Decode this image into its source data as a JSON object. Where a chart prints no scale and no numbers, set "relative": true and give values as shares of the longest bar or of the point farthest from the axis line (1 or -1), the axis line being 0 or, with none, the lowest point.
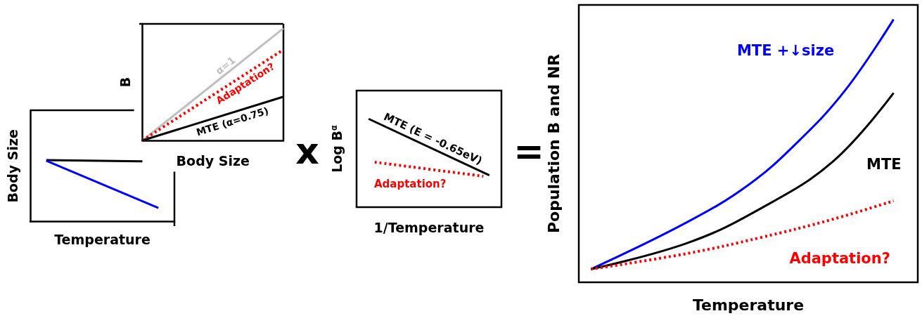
{
  "chart_data": [
    {
      "type": "line",
      "xlabel": "Temperature",
      "ylabel": "Body Size",
      "relative": true,
      "grid": false,
      "legend": false,
      "categories": [
        null,
        null,
        null,
        null,
        null,
        null,
        null,
        null,
        null,
        null
      ],
      "series": [
        {
          "color": "#000000",
          "values": [
            null,
            1,
            null,
            null,
            null,
            null,
            null,
            0.98,
            null,
            null
          ]
        },
        {
          "color": "#0000ff",
          "values": [
            null,
            0.99,
            null,
            null,
            null,
            null,
            null,
            null,
            0.22,
            null
          ]
        }
      ]
    },
    {
      "type": "line",
      "xlabel": "Body Size",
      "ylabel": "B",
      "relative": true,
      "grid": false,
      "legend": false,
      "categories": [
        null,
        null
      ],
      "series": [
        {
          "name": "α=1",
          "color": "#bfbfbf",
          "values": [
            0,
            1
          ]
        },
        {
          "name": "Adaptation?",
          "color": "#ff0000",
          "line_style": "dotted",
          "values": [
            0,
            0.81
          ]
        },
        {
          "name": "MTE (α=0.75)",
          "color": "#000000",
          "values": [
            0,
            0.39
          ]
        }
      ]
    },
    {
      "type": "line",
      "xlabel": "1/Temperature",
      "ylabel": "Log B$^{α}$",
      "relative": true,
      "grid": false,
      "legend": false,
      "annotations": [
        "x"
      ],
      "categories": [
        null,
        null,
        null,
        null,
        null,
        null,
        null,
        null,
        null,
        null,
        null,
        null,
        null,
        null,
        null,
        null,
        null,
        null,
        null,
        null,
        null,
        null,
        null,
        null,
        null
      ],
      "series": [
        {
          "name": "MTE (E = -0.65eV)",
          "color": "#000000",
          "values": [
            null,
            null,
            1,
            null,
            null,
            null,
            null,
            null,
            null,
            null,
            null,
            null,
            null,
            null,
            null,
            null,
            null,
            null,
            null,
            null,
            null,
            null,
            0.36,
            null,
            null
          ]
        },
        {
          "name": "Adaptation?",
          "color": "#ff0000",
          "line_style": "dotted",
          "values": [
            null,
            null,
            null,
            0.51,
            null,
            null,
            null,
            null,
            null,
            null,
            null,
            null,
            null,
            null,
            null,
            null,
            null,
            null,
            null,
            null,
            null,
            0.35,
            null,
            null,
            null
          ]
        }
      ]
    },
    {
      "type": "line",
      "xlabel": "Temperature",
      "ylabel": "Population B and NR",
      "relative": true,
      "grid": false,
      "legend": false,
      "annotations": [
        "="
      ],
      "categories": [
        null,
        null,
        null,
        null,
        null,
        null,
        null,
        null,
        null,
        null,
        null,
        null,
        null,
        null,
        null,
        null,
        null,
        null,
        null,
        null,
        null,
        null,
        null,
        null,
        null,
        null,
        null,
        null,
        null
      ],
      "series": [
        {
          "name": "MTE +↓size",
          "color": "#0000ff",
          "values": [
            null,
            0.05,
            null,
            null,
            null,
            null,
            null,
            null,
            null,
            0.23,
            null,
            null,
            null,
            null,
            0.37,
            null,
            null,
            null,
            0.53,
            null,
            null,
            null,
            0.73,
            null,
            null,
            null,
            1,
            null,
            null
          ]
        },
        {
          "name": "MTE",
          "color": "#000000",
          "values": [
            null,
            0.05,
            null,
            null,
            null,
            null,
            null,
            null,
            null,
            0.15,
            null,
            null,
            null,
            null,
            null,
            0.28,
            null,
            null,
            null,
            null,
            null,
            0.46,
            null,
            null,
            null,
            null,
            0.72,
            null,
            null
          ]
        },
        {
          "name": "Adaptation?",
          "color": "#ff0000",
          "line_style": "dotted",
          "values": [
            null,
            0.05,
            null,
            null,
            null,
            null,
            null,
            null,
            null,
            0.11,
            null,
            null,
            null,
            null,
            null,
            0.17,
            null,
            null,
            null,
            null,
            null,
            0.24,
            null,
            null,
            null,
            null,
            0.31,
            null,
            null
          ]
        }
      ]
    }
  ]
}
